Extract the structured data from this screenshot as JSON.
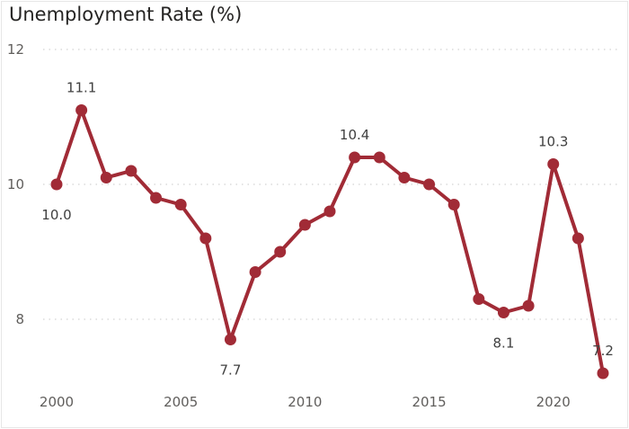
{
  "chart_data": {
    "type": "line",
    "title": "Unemployment Rate (%)",
    "xlabel": "",
    "ylabel": "",
    "x": [
      2000,
      2001,
      2002,
      2003,
      2004,
      2005,
      2006,
      2007,
      2008,
      2009,
      2010,
      2011,
      2012,
      2013,
      2014,
      2015,
      2016,
      2017,
      2018,
      2019,
      2020,
      2021,
      2022
    ],
    "series": [
      {
        "values": [
          10.0,
          11.1,
          10.1,
          10.2,
          9.8,
          9.7,
          9.2,
          7.7,
          8.7,
          9.0,
          9.4,
          9.6,
          10.4,
          10.4,
          10.1,
          10.0,
          9.7,
          8.3,
          8.1,
          8.2,
          10.3,
          9.2,
          7.2
        ],
        "color": "#a12b36"
      }
    ],
    "ylim": [
      7.0,
      12.0
    ],
    "xlim": [
      2000,
      2022
    ],
    "yticks": [
      "8",
      "10",
      "12"
    ],
    "xticks": [
      "2000",
      "2005",
      "2010",
      "2015",
      "2020"
    ],
    "data_labels": [
      {
        "x": 2000,
        "text": "10.0",
        "position": "below"
      },
      {
        "x": 2001,
        "text": "11.1",
        "position": "above"
      },
      {
        "x": 2007,
        "text": "7.7",
        "position": "below"
      },
      {
        "x": 2012,
        "text": "10.4",
        "position": "above"
      },
      {
        "x": 2018,
        "text": "8.1",
        "position": "below"
      },
      {
        "x": 2020,
        "text": "10.3",
        "position": "above"
      },
      {
        "x": 2022,
        "text": "7.2",
        "position": "above"
      }
    ],
    "grid": "horizontal-dotted",
    "legend": "none"
  }
}
